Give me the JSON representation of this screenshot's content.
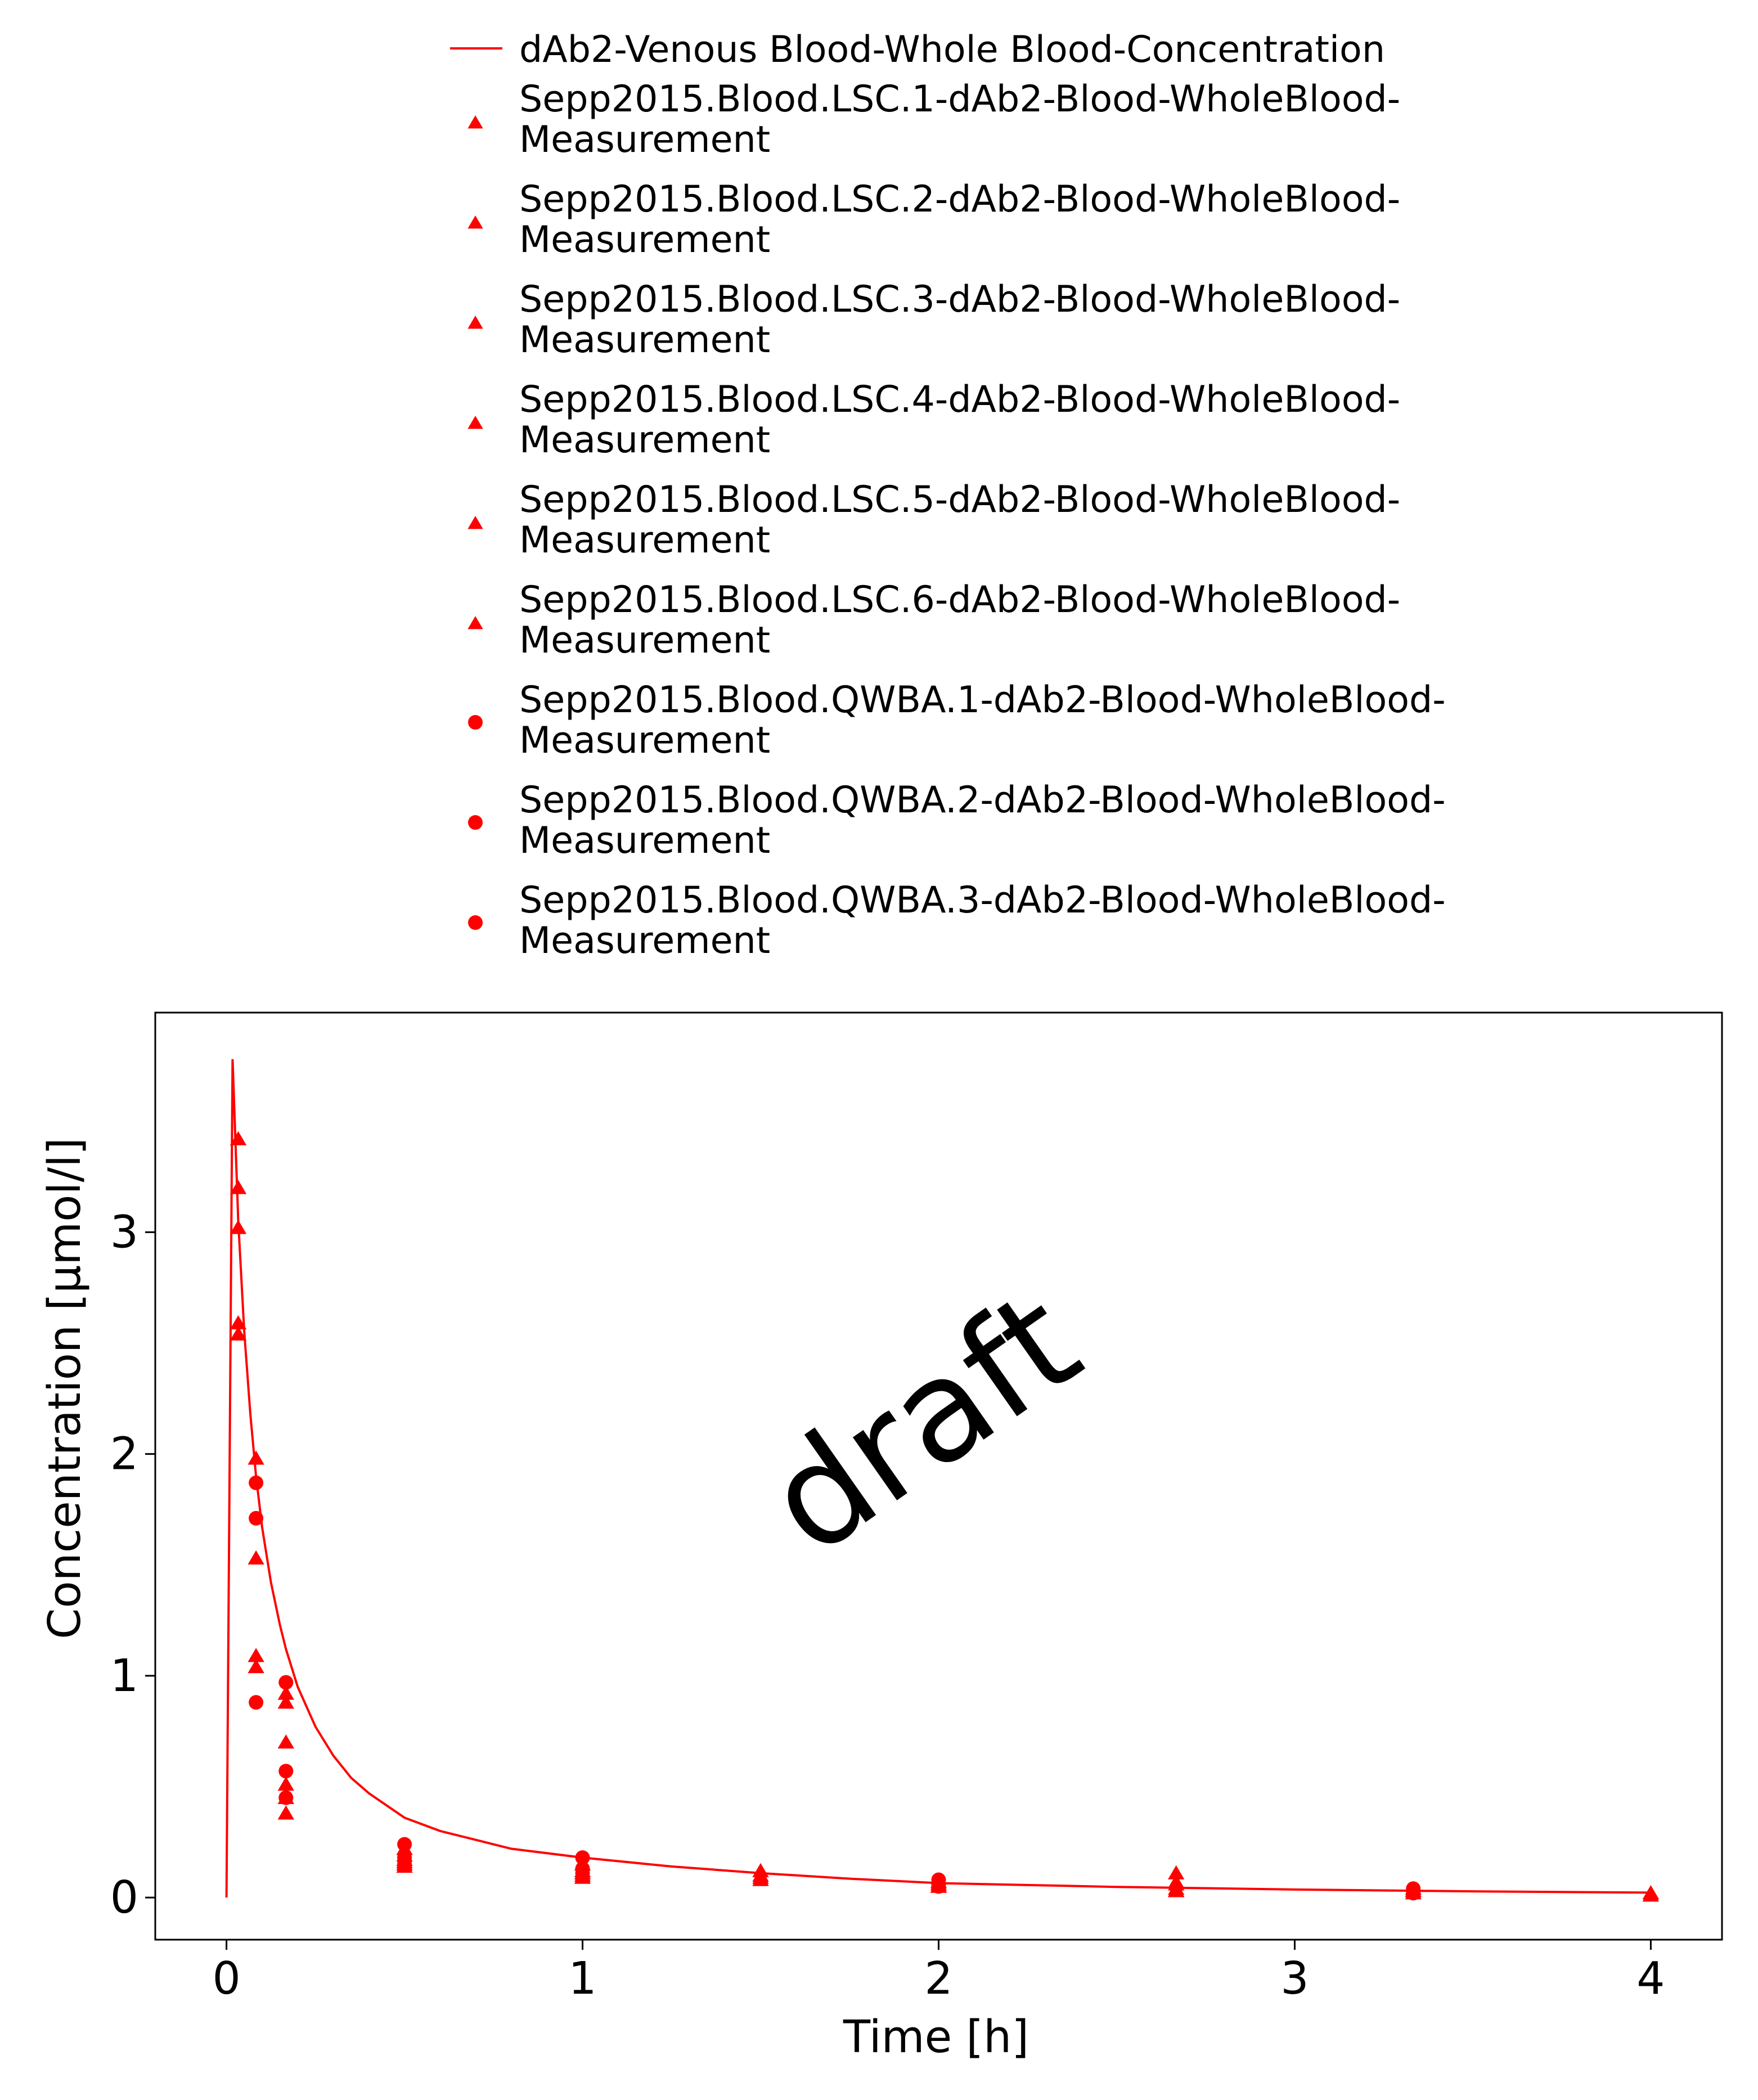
{
  "chart_data": {
    "type": "scatter",
    "xlabel": "Time [h]",
    "ylabel": "Concentration [µmol/l]",
    "xlim": [
      -0.2,
      4.2
    ],
    "ylim": [
      -0.19,
      3.99
    ],
    "xticks": [
      0,
      1,
      2,
      3,
      4
    ],
    "yticks": [
      0,
      1,
      2,
      3
    ],
    "grid": false,
    "legend_position": "top",
    "watermark": "draft",
    "colors": {
      "series": "#ff0000",
      "axis": "#000000",
      "watermark": "#c8c8c8"
    },
    "simulation": {
      "name": "dAb2-Venous Blood-Whole Blood-Concentration",
      "marker": "line",
      "x": [
        0,
        0.017,
        0.033,
        0.05,
        0.067,
        0.083,
        0.1,
        0.125,
        0.15,
        0.167,
        0.2,
        0.25,
        0.3,
        0.35,
        0.4,
        0.5,
        0.6,
        0.7,
        0.8,
        1.0,
        1.25,
        1.5,
        1.75,
        2.0,
        2.5,
        3.0,
        3.5,
        4.0
      ],
      "y": [
        0.0,
        3.78,
        3.05,
        2.55,
        2.18,
        1.9,
        1.67,
        1.42,
        1.23,
        1.12,
        0.95,
        0.77,
        0.64,
        0.54,
        0.47,
        0.36,
        0.3,
        0.26,
        0.22,
        0.18,
        0.14,
        0.11,
        0.085,
        0.065,
        0.048,
        0.036,
        0.028,
        0.022
      ]
    },
    "series": [
      {
        "name": "Sepp2015.Blood.LSC.1-dAb2-Blood-WholeBlood-Measurement",
        "marker": "triangle",
        "x": [
          0.033,
          0.083,
          0.167,
          0.5,
          1.0,
          1.5,
          2.0,
          2.667,
          3.333,
          4.0
        ],
        "y": [
          3.42,
          1.98,
          0.92,
          0.22,
          0.15,
          0.12,
          0.07,
          0.11,
          0.04,
          0.02
        ]
      },
      {
        "name": "Sepp2015.Blood.LSC.2-dAb2-Blood-WholeBlood-Measurement",
        "marker": "triangle",
        "x": [
          0.033,
          0.083,
          0.167,
          0.5,
          1.0,
          1.5,
          2.0,
          2.667,
          3.333,
          4.0
        ],
        "y": [
          3.2,
          1.53,
          0.88,
          0.19,
          0.12,
          0.1,
          0.06,
          0.07,
          0.03,
          0.02
        ]
      },
      {
        "name": "Sepp2015.Blood.LSC.3-dAb2-Blood-WholeBlood-Measurement",
        "marker": "triangle",
        "x": [
          0.033,
          0.083,
          0.167,
          0.5,
          1.0,
          1.5,
          2.0,
          2.667,
          3.333,
          4.0
        ],
        "y": [
          3.02,
          1.09,
          0.7,
          0.17,
          0.1,
          0.09,
          0.05,
          0.06,
          0.03,
          0.02
        ]
      },
      {
        "name": "Sepp2015.Blood.LSC.4-dAb2-Blood-WholeBlood-Measurement",
        "marker": "triangle",
        "x": [
          0.033,
          0.083,
          0.167,
          0.5,
          1.0,
          1.5,
          2.0,
          2.667,
          3.333,
          4.0
        ],
        "y": [
          2.59,
          1.04,
          0.51,
          0.16,
          0.11,
          0.08,
          0.05,
          0.04,
          0.03,
          0.01
        ]
      },
      {
        "name": "Sepp2015.Blood.LSC.5-dAb2-Blood-WholeBlood-Measurement",
        "marker": "triangle",
        "x": [
          0.033,
          0.167,
          0.5,
          1.0,
          2.0,
          2.667,
          3.333
        ],
        "y": [
          2.54,
          0.45,
          0.15,
          0.09,
          0.05,
          0.03,
          0.02
        ]
      },
      {
        "name": "Sepp2015.Blood.LSC.6-dAb2-Blood-WholeBlood-Measurement",
        "marker": "triangle",
        "x": [
          0.167,
          0.5,
          2.667
        ],
        "y": [
          0.38,
          0.14,
          0.03
        ]
      },
      {
        "name": "Sepp2015.Blood.QWBA.1-dAb2-Blood-WholeBlood-Measurement",
        "marker": "circle",
        "x": [
          0.083,
          0.167,
          0.5,
          1.0,
          2.0,
          3.333
        ],
        "y": [
          1.87,
          0.97,
          0.24,
          0.18,
          0.08,
          0.04
        ]
      },
      {
        "name": "Sepp2015.Blood.QWBA.2-dAb2-Blood-WholeBlood-Measurement",
        "marker": "circle",
        "x": [
          0.083,
          0.167,
          0.5,
          1.0,
          2.0,
          3.333
        ],
        "y": [
          1.71,
          0.57,
          0.18,
          0.13,
          0.06,
          0.03
        ]
      },
      {
        "name": "Sepp2015.Blood.QWBA.3-dAb2-Blood-WholeBlood-Measurement",
        "marker": "circle",
        "x": [
          0.083,
          0.167,
          0.5,
          1.0,
          2.0,
          3.333
        ],
        "y": [
          0.88,
          0.45,
          0.15,
          0.11,
          0.05,
          0.02
        ]
      }
    ]
  }
}
